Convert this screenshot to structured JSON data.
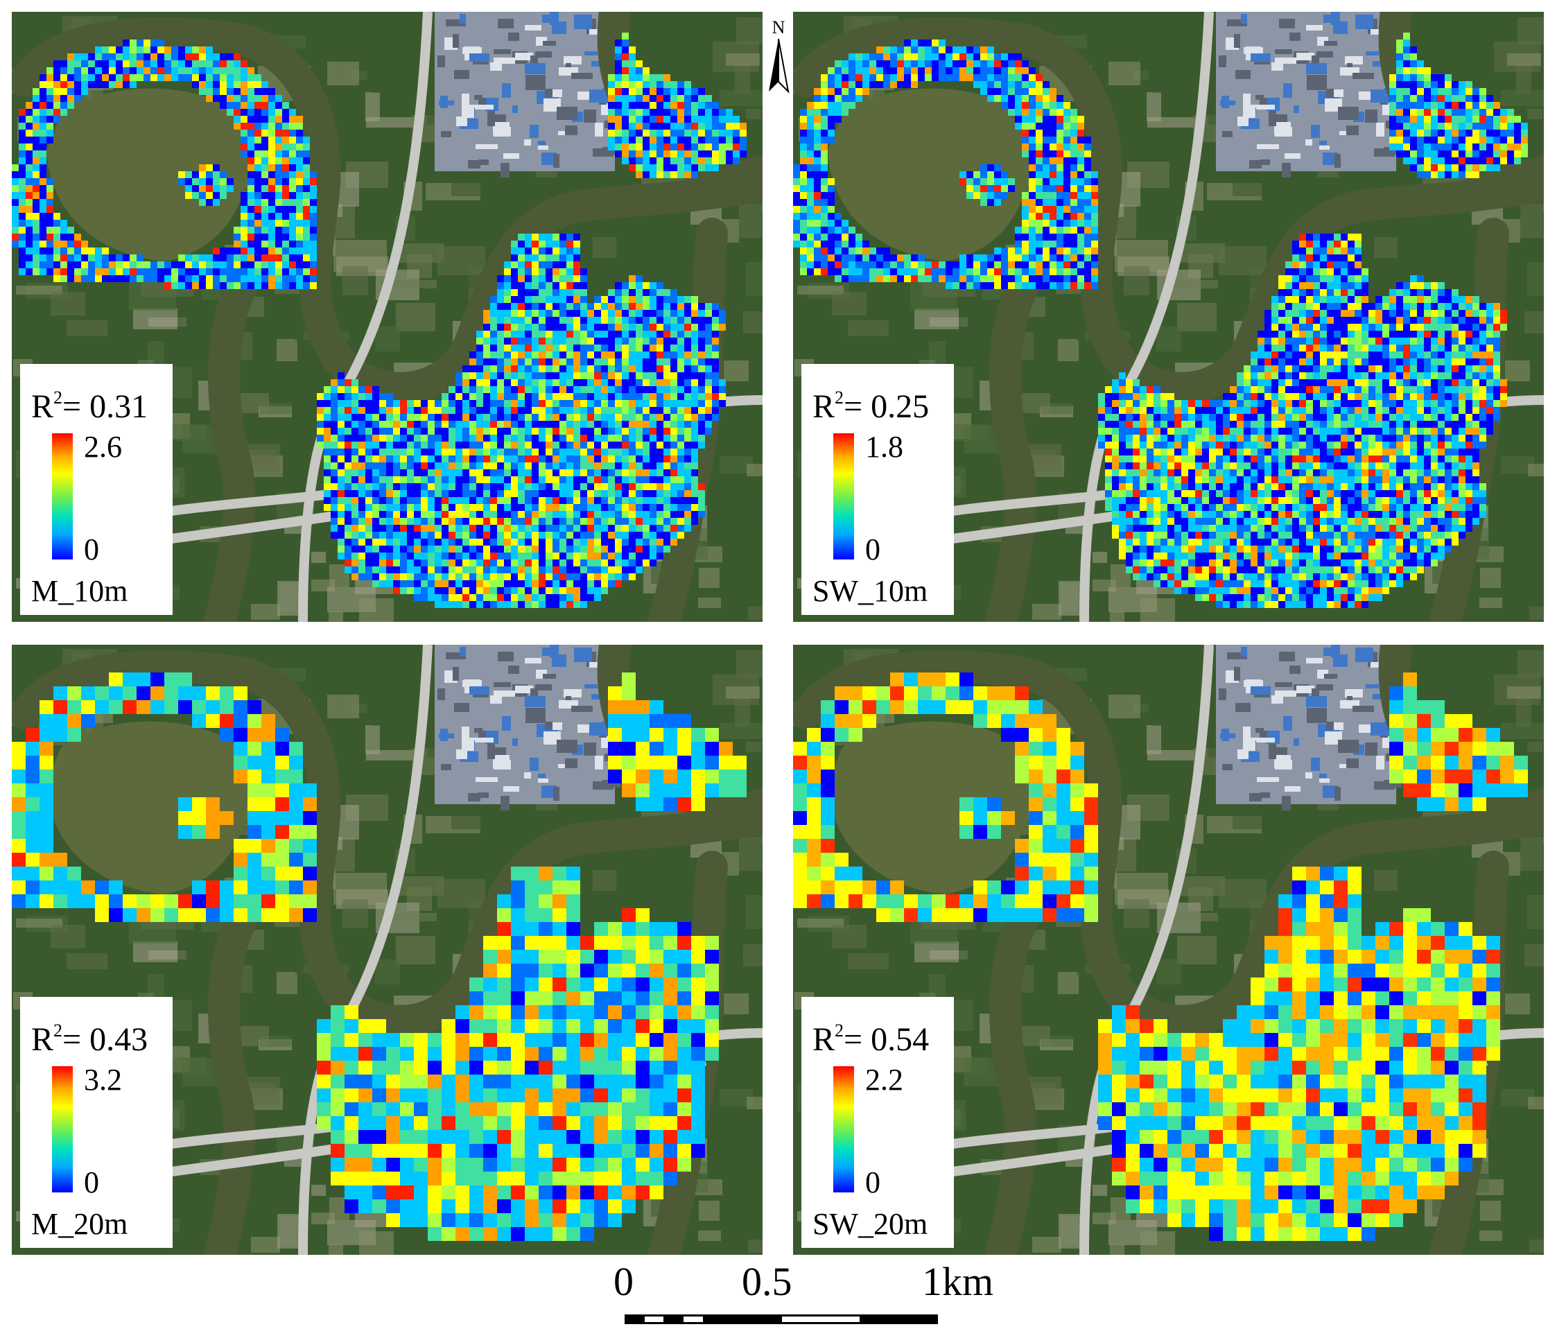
{
  "north_arrow": {
    "label": "N"
  },
  "panels": [
    {
      "id": "M_10m",
      "name": "M_10m",
      "r2_label": "R",
      "r2_sup": "2",
      "r2_value": "= 0.31",
      "legend_max": "2.6",
      "legend_min": "0",
      "grid_resolution": "fine",
      "palette": "mixed-blue"
    },
    {
      "id": "SW_10m",
      "name": "SW_10m",
      "r2_label": "R",
      "r2_sup": "2",
      "r2_value": "= 0.25",
      "legend_max": "1.8",
      "legend_min": "0",
      "grid_resolution": "fine",
      "palette": "mixed-blue"
    },
    {
      "id": "M_20m",
      "name": "M_20m",
      "r2_label": "R",
      "r2_sup": "2",
      "r2_value": "= 0.43",
      "legend_max": "3.2",
      "legend_min": "0",
      "grid_resolution": "coarse",
      "palette": "cyan-yellow"
    },
    {
      "id": "SW_20m",
      "name": "SW_20m",
      "r2_label": "R",
      "r2_sup": "2",
      "r2_value": "= 0.54",
      "legend_max": "2.2",
      "legend_min": "0",
      "grid_resolution": "coarse",
      "palette": "yellow-heavy"
    }
  ],
  "scale_bar": {
    "labels": [
      "0",
      "0.5",
      "1km"
    ]
  },
  "colors": {
    "river": "#4d5a36",
    "lake": "#5d6a3c",
    "vegetation": "#3a5a2e",
    "urban": "#8c96a6",
    "road": "#c8c8c4",
    "ramp_high": "#ff0000",
    "ramp_low": "#0000ff"
  }
}
